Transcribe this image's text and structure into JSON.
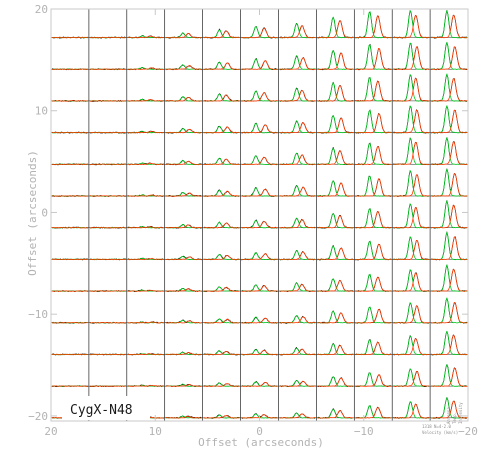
{
  "chart_data": {
    "type": "spectral-map",
    "source_label": "CygX-N48",
    "xlabel": "Offset (arcseconds)",
    "ylabel": "Offset (arcseconds)",
    "xlim": [
      20,
      -20
    ],
    "ylim": [
      -20.5,
      20
    ],
    "x_ticks": [
      20,
      10,
      0,
      -10,
      -20
    ],
    "y_ticks": [
      20,
      10,
      0,
      -10,
      -20
    ],
    "x_tick_labels": [
      "20",
      "10",
      "0",
      "−10",
      "−20"
    ],
    "y_tick_labels": [
      "20",
      "10",
      "0",
      "−10",
      "−20"
    ],
    "grid": {
      "columns": 11,
      "rows": 13,
      "col_offsets": [
        18.3,
        14.6,
        11.0,
        7.3,
        3.7,
        0.0,
        -3.7,
        -7.3,
        -11.0,
        -14.6,
        -18.3
      ],
      "row_offsets": [
        18.4,
        15.2,
        11.9,
        8.7,
        5.5,
        2.2,
        -1.0,
        -4.2,
        -7.5,
        -10.7,
        -13.9,
        -17.2,
        -20.4
      ]
    },
    "series": [
      {
        "name": "",
        "color": "#000000"
      },
      {
        "name": "",
        "color": "#00c81e"
      },
      {
        "name": "",
        "color": "#ff3c00"
      }
    ],
    "corner_note": {
      "lines": [
        "1318 N=4-2.0",
        "Velocity (km/s)"
      ],
      "rotated_lines": [
        "Antenna",
        "Temp.",
        "Intensity"
      ]
    }
  }
}
